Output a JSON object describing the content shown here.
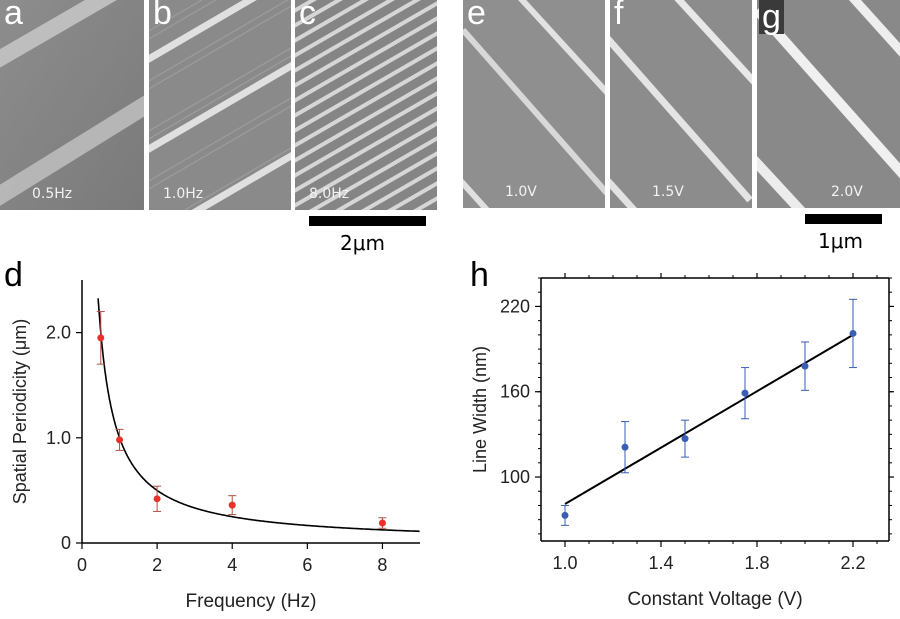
{
  "top_panels": {
    "left": [
      {
        "letter": "a",
        "caption": "0.5Hz"
      },
      {
        "letter": "b",
        "caption": "1.0Hz"
      },
      {
        "letter": "c",
        "caption": "8.0Hz"
      }
    ],
    "right": [
      {
        "letter": "e",
        "caption": "1.0V"
      },
      {
        "letter": "f",
        "caption": "1.5V"
      },
      {
        "letter": "g",
        "caption": "2.0V"
      }
    ],
    "scalebar_left": "2μm",
    "scalebar_right": "1μm"
  },
  "chart_data": [
    {
      "panel": "d",
      "type": "scatter",
      "xlabel": "Frequency (Hz)",
      "ylabel": "Spatial Periodicity (μm)",
      "xlim": [
        0,
        9
      ],
      "ylim": [
        0,
        2.5
      ],
      "xticks": [
        "0",
        "2",
        "4",
        "6",
        "8"
      ],
      "yticks": [
        "0",
        "1.0",
        "2.0"
      ],
      "points": [
        {
          "x": 0.5,
          "y": 1.95,
          "err": 0.25
        },
        {
          "x": 1.0,
          "y": 0.98,
          "err": 0.1
        },
        {
          "x": 2.0,
          "y": 0.42,
          "err": 0.12
        },
        {
          "x": 4.0,
          "y": 0.36,
          "err": 0.09
        },
        {
          "x": 8.0,
          "y": 0.19,
          "err": 0.05
        }
      ],
      "fit": {
        "form": "y = a / x",
        "a": 1.0
      },
      "point_color": "#e8322a",
      "fit_color": "#000000",
      "grid": false
    },
    {
      "panel": "h",
      "type": "scatter",
      "xlabel": "Constant Voltage (V)",
      "ylabel": "Line Width (nm)",
      "xlim": [
        0.9,
        2.35
      ],
      "ylim": [
        55,
        240
      ],
      "xticks": [
        "1.0",
        "1.4",
        "1.8",
        "2.2"
      ],
      "yticks": [
        "100",
        "160",
        "220"
      ],
      "points": [
        {
          "x": 1.0,
          "y": 73,
          "err": 7
        },
        {
          "x": 1.25,
          "y": 121,
          "err": 18
        },
        {
          "x": 1.5,
          "y": 127,
          "err": 13
        },
        {
          "x": 1.75,
          "y": 159,
          "err": 18
        },
        {
          "x": 2.0,
          "y": 178,
          "err": 17
        },
        {
          "x": 2.2,
          "y": 201,
          "err": 24
        }
      ],
      "fit": {
        "form": "linear",
        "x": [
          1.0,
          2.2
        ],
        "y": [
          81,
          200
        ]
      },
      "point_color": "#3a5db5",
      "fit_color": "#000000",
      "grid": false
    }
  ]
}
